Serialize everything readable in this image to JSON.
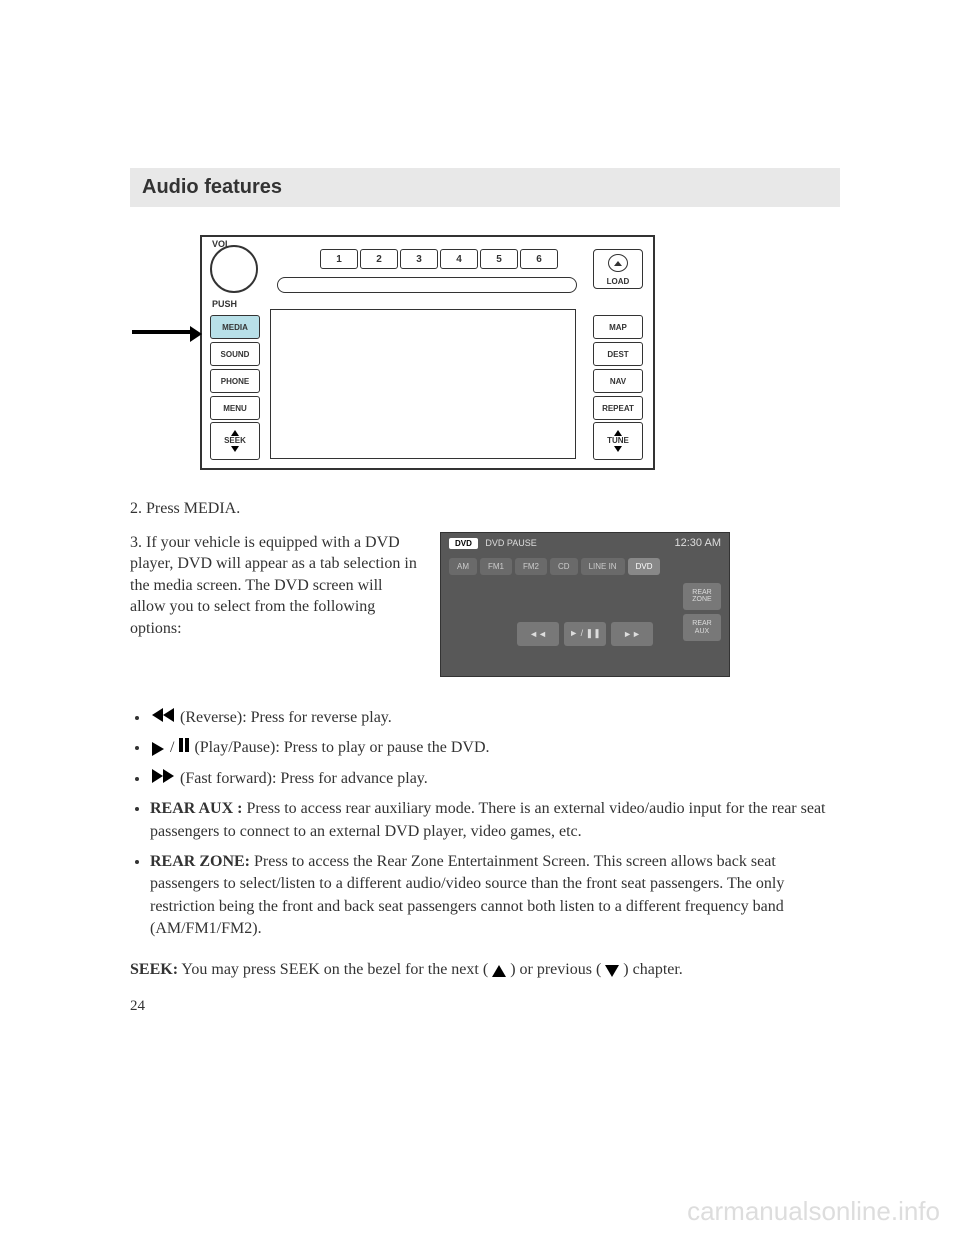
{
  "header": {
    "title": "Audio features"
  },
  "radio": {
    "vol_label": "VOL",
    "push_label": "PUSH",
    "presets": [
      "1",
      "2",
      "3",
      "4",
      "5",
      "6"
    ],
    "load_label": "LOAD",
    "left_buttons": [
      "MEDIA",
      "SOUND",
      "PHONE",
      "MENU"
    ],
    "right_buttons": [
      "MAP",
      "DEST",
      "NAV",
      "REPEAT"
    ],
    "seek_label": "SEEK",
    "tune_label": "TUNE"
  },
  "steps": {
    "step2": "2. Press MEDIA.",
    "step3": "3. If your vehicle is equipped with a DVD player, DVD will appear as a tab selection in the media screen. The DVD screen will allow you to select from the following options:"
  },
  "dvd_screen": {
    "badge": "DVD",
    "status": "DVD PAUSE",
    "clock": "12:30 AM",
    "tabs": [
      "AM",
      "FM1",
      "FM2",
      "CD",
      "LINE IN",
      "DVD"
    ],
    "side_buttons_top": "REAR ZONE",
    "side_buttons_bottom": "REAR AUX",
    "transport": [
      "◄◄",
      "► / ❚❚",
      "►►"
    ]
  },
  "bullets": {
    "reverse_text": "(Reverse): Press for reverse play.",
    "playpause_text": "(Play/Pause): Press to play or pause the DVD.",
    "ff_text": "(Fast forward): Press for advance play.",
    "rear_aux_label": "REAR AUX :",
    "rear_aux_text": " Press to access rear auxiliary mode. There is an external video/audio input for the rear seat passengers to connect to an external DVD player, video games, etc.",
    "rear_zone_label": "REAR ZONE:",
    "rear_zone_text": " Press to access the Rear Zone Entertainment Screen. This screen allows back seat passengers to select/listen to a different audio/video source than the front seat passengers. The only restriction being the front and back seat passengers cannot both listen to a different frequency band (AM/FM1/FM2)."
  },
  "seek_para": {
    "label": "SEEK:",
    "pre": " You may press SEEK on the bezel for the next (",
    "mid": " ) or previous (",
    "end": " ) chapter."
  },
  "page_number": "24",
  "watermark": "carmanualsonline.info"
}
